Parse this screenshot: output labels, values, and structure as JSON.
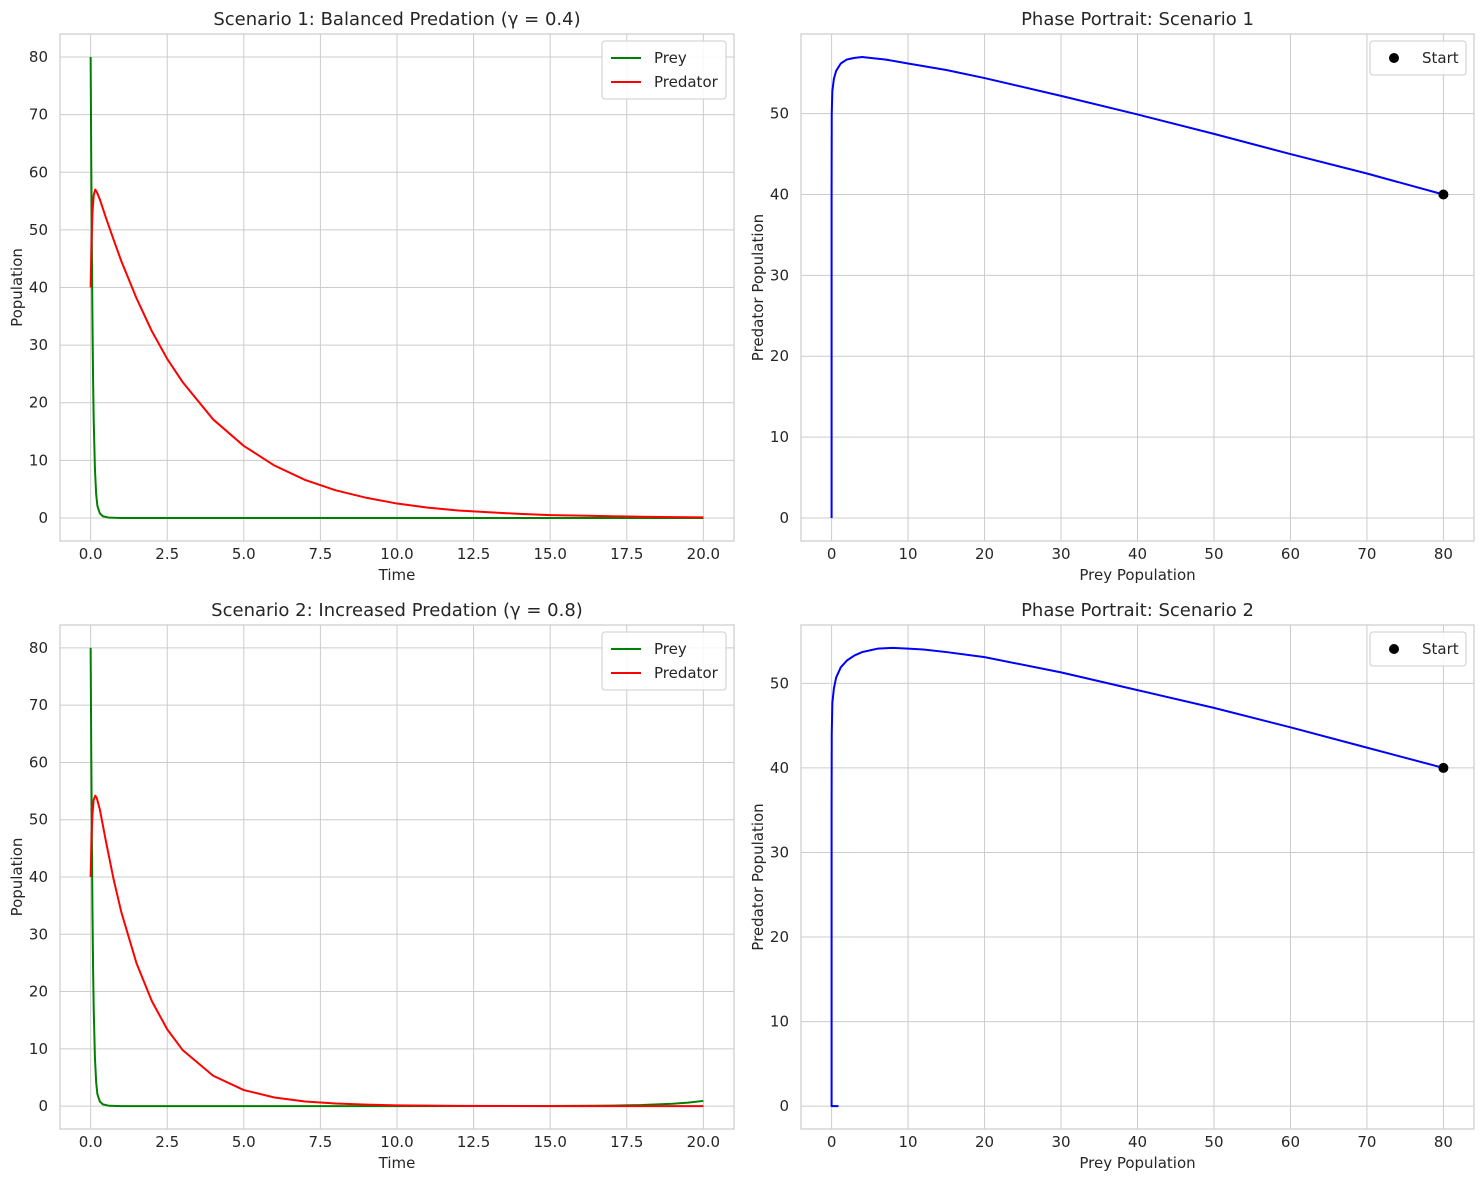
{
  "colors": {
    "prey": "#008000",
    "predator": "#ff0000",
    "phase": "#0000ff",
    "start": "#000000",
    "grid": "#cccccc",
    "axes": "#cccccc",
    "text": "#262626"
  },
  "chart_data": [
    {
      "type": "line",
      "title": "Scenario 1: Balanced Predation (γ = 0.4)",
      "xlabel": "Time",
      "ylabel": "Population",
      "xlim": [
        -1.0,
        21.0
      ],
      "ylim": [
        -4.0,
        84.0
      ],
      "xticks": [
        0,
        2.5,
        5,
        7.5,
        10,
        12.5,
        15,
        17.5,
        20
      ],
      "xtick_labels": [
        "0.0",
        "2.5",
        "5.0",
        "7.5",
        "10.0",
        "12.5",
        "15.0",
        "17.5",
        "20.0"
      ],
      "yticks": [
        0,
        10,
        20,
        30,
        40,
        50,
        60,
        70,
        80
      ],
      "ytick_labels": [
        "0",
        "10",
        "20",
        "30",
        "40",
        "50",
        "60",
        "70",
        "80"
      ],
      "grid": true,
      "legend": "upper right",
      "series": [
        {
          "name": "Prey",
          "color": "#008000",
          "x": [
            0,
            0.02,
            0.04,
            0.06,
            0.08,
            0.1,
            0.14,
            0.18,
            0.22,
            0.3,
            0.4,
            0.6,
            1.0,
            2.0,
            5.0,
            10.0,
            15.0,
            20.0
          ],
          "y": [
            80,
            62,
            47,
            34,
            24,
            17,
            8.5,
            4.2,
            2.1,
            0.8,
            0.3,
            0.05,
            0,
            0,
            0,
            0,
            0,
            0
          ]
        },
        {
          "name": "Predator",
          "color": "#ff0000",
          "x": [
            0,
            0.03,
            0.06,
            0.1,
            0.15,
            0.2,
            0.3,
            0.5,
            0.75,
            1.0,
            1.5,
            2.0,
            2.5,
            3.0,
            4.0,
            5.0,
            6.0,
            7.0,
            8.0,
            9.0,
            10.0,
            11.0,
            12.0,
            13.0,
            14.0,
            15.0,
            16.0,
            17.0,
            18.0,
            19.0,
            20.0
          ],
          "y": [
            40,
            48,
            53,
            56,
            57,
            56.6,
            55.3,
            52.1,
            48.3,
            44.6,
            38.1,
            32.4,
            27.6,
            23.6,
            17.1,
            12.5,
            9.1,
            6.6,
            4.8,
            3.5,
            2.5,
            1.8,
            1.3,
            1.0,
            0.7,
            0.5,
            0.4,
            0.3,
            0.2,
            0.15,
            0.1
          ]
        }
      ]
    },
    {
      "type": "line",
      "title": "Phase Portrait: Scenario 1",
      "xlabel": "Prey Population",
      "ylabel": "Predator Population",
      "xlim": [
        -4.0,
        84.0
      ],
      "ylim": [
        -2.85,
        59.85
      ],
      "xticks": [
        0,
        10,
        20,
        30,
        40,
        50,
        60,
        70,
        80
      ],
      "xtick_labels": [
        "0",
        "10",
        "20",
        "30",
        "40",
        "50",
        "60",
        "70",
        "80"
      ],
      "yticks": [
        0,
        10,
        20,
        30,
        40,
        50
      ],
      "ytick_labels": [
        "0",
        "10",
        "20",
        "30",
        "40",
        "50"
      ],
      "grid": true,
      "legend": "upper right",
      "series": [
        {
          "name": "",
          "color": "#0000ff",
          "x": [
            80,
            70,
            60,
            50,
            40,
            30,
            20,
            15,
            10,
            7,
            5,
            4,
            3,
            2,
            1.2,
            0.6,
            0.3,
            0.1,
            0.02,
            0,
            0,
            0,
            0,
            0
          ],
          "y": [
            40,
            42.6,
            45,
            47.5,
            49.9,
            52.2,
            54.4,
            55.4,
            56.2,
            56.7,
            56.9,
            57,
            56.9,
            56.7,
            56.2,
            55.3,
            54.3,
            52.8,
            50,
            40,
            30,
            20,
            10,
            0
          ]
        },
        {
          "name": "Start",
          "color": "#000000",
          "marker": "circle",
          "x": [
            80
          ],
          "y": [
            40
          ]
        }
      ]
    },
    {
      "type": "line",
      "title": "Scenario 2: Increased Predation (γ = 0.8)",
      "xlabel": "Time",
      "ylabel": "Population",
      "xlim": [
        -1.0,
        21.0
      ],
      "ylim": [
        -4.0,
        84.0
      ],
      "xticks": [
        0,
        2.5,
        5,
        7.5,
        10,
        12.5,
        15,
        17.5,
        20
      ],
      "xtick_labels": [
        "0.0",
        "2.5",
        "5.0",
        "7.5",
        "10.0",
        "12.5",
        "15.0",
        "17.5",
        "20.0"
      ],
      "yticks": [
        0,
        10,
        20,
        30,
        40,
        50,
        60,
        70,
        80
      ],
      "ytick_labels": [
        "0",
        "10",
        "20",
        "30",
        "40",
        "50",
        "60",
        "70",
        "80"
      ],
      "grid": true,
      "legend": "upper right",
      "series": [
        {
          "name": "Prey",
          "color": "#008000",
          "x": [
            0,
            0.02,
            0.04,
            0.06,
            0.08,
            0.1,
            0.14,
            0.18,
            0.22,
            0.3,
            0.4,
            0.6,
            1.0,
            2.0,
            5.0,
            10.0,
            15.0,
            17.0,
            18.0,
            19.0,
            19.5,
            20.0
          ],
          "y": [
            80,
            62,
            47,
            34,
            24,
            17,
            8.5,
            4.2,
            2.1,
            0.8,
            0.3,
            0.05,
            0,
            0,
            0,
            0,
            0.02,
            0.08,
            0.18,
            0.4,
            0.6,
            0.9
          ]
        },
        {
          "name": "Predator",
          "color": "#ff0000",
          "x": [
            0,
            0.03,
            0.06,
            0.1,
            0.15,
            0.2,
            0.3,
            0.5,
            0.75,
            1.0,
            1.5,
            2.0,
            2.5,
            3.0,
            4.0,
            5.0,
            6.0,
            7.0,
            8.0,
            9.0,
            10.0,
            12.0,
            15.0,
            20.0
          ],
          "y": [
            40,
            47,
            51,
            53.5,
            54.2,
            53.8,
            51.8,
            46.2,
            39.6,
            33.9,
            24.9,
            18.3,
            13.4,
            9.8,
            5.3,
            2.8,
            1.5,
            0.8,
            0.45,
            0.25,
            0.12,
            0.04,
            0,
            0
          ]
        }
      ]
    },
    {
      "type": "line",
      "title": "Phase Portrait: Scenario 2",
      "xlabel": "Prey Population",
      "ylabel": "Predator Population",
      "xlim": [
        -4.0,
        84.0
      ],
      "ylim": [
        -2.7,
        56.9
      ],
      "xticks": [
        0,
        10,
        20,
        30,
        40,
        50,
        60,
        70,
        80
      ],
      "xtick_labels": [
        "0",
        "10",
        "20",
        "30",
        "40",
        "50",
        "60",
        "70",
        "80"
      ],
      "yticks": [
        0,
        10,
        20,
        30,
        40,
        50
      ],
      "ytick_labels": [
        "0",
        "10",
        "20",
        "30",
        "40",
        "50"
      ],
      "grid": true,
      "legend": "upper right",
      "series": [
        {
          "name": "",
          "color": "#0000ff",
          "x": [
            80,
            70,
            60,
            50,
            40,
            30,
            20,
            15,
            12,
            10,
            8,
            6,
            5,
            4,
            3,
            2,
            1.2,
            0.6,
            0.3,
            0.1,
            0.02,
            0,
            0,
            0,
            0,
            0,
            0.3,
            0.9
          ],
          "y": [
            40,
            42.4,
            44.8,
            47.1,
            49.2,
            51.3,
            53.1,
            53.7,
            54,
            54.1,
            54.2,
            54.1,
            53.9,
            53.7,
            53.3,
            52.7,
            51.9,
            50.7,
            49.4,
            47.7,
            44,
            35,
            25,
            15,
            5,
            0,
            0,
            0
          ]
        },
        {
          "name": "Start",
          "color": "#000000",
          "marker": "circle",
          "x": [
            80
          ],
          "y": [
            40
          ]
        }
      ]
    }
  ]
}
